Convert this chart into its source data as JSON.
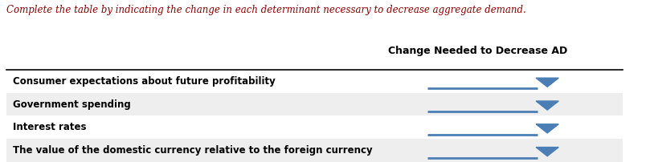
{
  "instruction": "Complete the table by indicating the change in each determinant necessary to decrease aggregate demand.",
  "column_header": "Change Needed to Decrease AD",
  "rows": [
    "Consumer expectations about future profitability",
    "Government spending",
    "Interest rates",
    "The value of the domestic currency relative to the foreign currency"
  ],
  "row_bg_colors": [
    "#ffffff",
    "#eeeeee",
    "#ffffff",
    "#eeeeee"
  ],
  "instruction_color": "#8B0000",
  "header_color": "#000000",
  "row_text_color": "#000000",
  "dropdown_line_color": "#4a7eb5",
  "dropdown_arrow_color": "#4a7eb5",
  "bg_color": "#ffffff",
  "fig_width": 8.09,
  "fig_height": 2.02,
  "dpi": 100
}
